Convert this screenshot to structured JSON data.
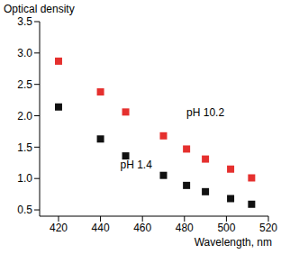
{
  "chart_data": {
    "type": "scatter",
    "x_label": "Wavelength, nm",
    "y_label": "Optical density",
    "xlim": [
      411,
      520
    ],
    "xticks": [
      420,
      440,
      460,
      480,
      500,
      520
    ],
    "ylim": [
      0.4,
      3.5
    ],
    "yticks": [
      0.5,
      {
        "value": 1,
        "label": "1.0"
      },
      1.5,
      {
        "value": 2,
        "label": "2.0"
      },
      2.5,
      {
        "value": 3,
        "label": "3.0"
      },
      3.5
    ],
    "x": [
      420,
      440,
      452,
      470,
      481,
      490,
      502,
      512
    ],
    "series": [
      {
        "color": "#e5302e",
        "marker": "square",
        "values": [
          2.87,
          2.38,
          2.06,
          1.68,
          1.47,
          1.31,
          1.15,
          1.01
        ]
      },
      {
        "color": "#111111",
        "marker": "square",
        "values": [
          2.14,
          1.63,
          1.36,
          1.05,
          0.89,
          0.79,
          0.68,
          0.59
        ]
      }
    ],
    "annotations": [
      {
        "text": "pH 10.2",
        "x": 490,
        "y": 2.05
      },
      {
        "text": "pH 1.4",
        "x": 457,
        "y": 1.22
      }
    ]
  }
}
